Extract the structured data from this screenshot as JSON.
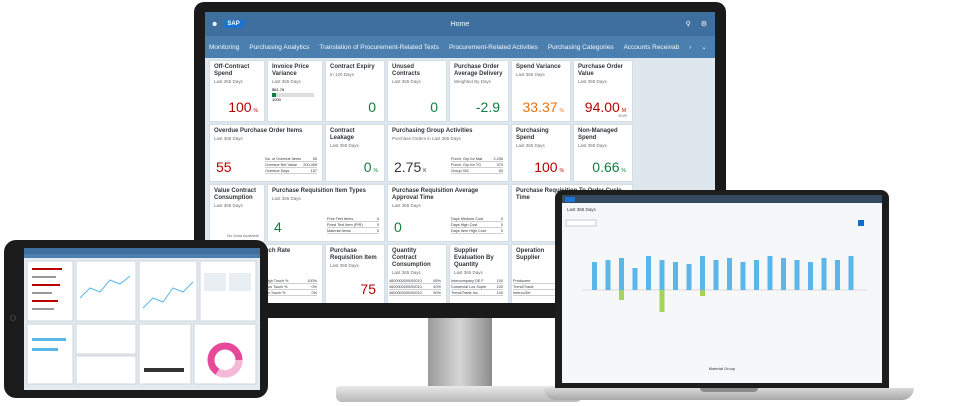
{
  "monitor": {
    "shell_title": "Home",
    "logo": "SAP",
    "tabs": [
      "Monitoring",
      "Purchasing Analytics",
      "Translation of Procurement-Related Texts",
      "Procurement-Related Activities",
      "Purchasing Categories",
      "Accounts Receivab",
      "›",
      "⌄"
    ],
    "tiles": [
      {
        "title": "Off-Contract Spend",
        "sub": "Last 365 Days",
        "kpi": "100",
        "unit": "%",
        "state": "neg"
      },
      {
        "title": "Invoice Price Variance",
        "sub": "Last 365 Days",
        "kpi": "",
        "unit": "",
        "state": "neu",
        "bar_top": "$61.76",
        "bar_bottom": "1000"
      },
      {
        "title": "Contract Expiry",
        "sub": "In 120 Days",
        "kpi": "0",
        "unit": "",
        "state": "pos"
      },
      {
        "title": "Unused Contracts",
        "sub": "Last 365 Days",
        "kpi": "0",
        "unit": "",
        "state": "pos"
      },
      {
        "title": "Purchase Order Average Delivery",
        "sub": "Weighted By Days",
        "kpi": "-2.9",
        "unit": "",
        "state": "pos"
      },
      {
        "title": "Spend Variance",
        "sub": "Last 365 Days",
        "kpi": "33.37",
        "unit": "%",
        "state": "crit"
      },
      {
        "title": "Purchase Order Value",
        "sub": "Last 365 Days",
        "kpi": "94.00",
        "unit": "M",
        "state": "neg",
        "foot": "EUR"
      },
      {
        "title": "Overdue Purchase Order Items",
        "sub": "Last 365 Days",
        "kpi": "55",
        "unit": "",
        "state": "neg",
        "rows": [
          [
            "No. of Overdue Items",
            "55"
          ],
          [
            "Overdue Net Value",
            "200,469"
          ],
          [
            "Overdue Days",
            "157"
          ]
        ]
      },
      {
        "title": "Contract Leakage",
        "sub": "Last 365 Days",
        "kpi": "0",
        "unit": "%",
        "state": "pos"
      },
      {
        "title": "Purchasing Group Activities",
        "sub": "Purchase Orders in Last 365 Days",
        "kpi": "2.75",
        "unit": "K",
        "state": "neu",
        "rows": [
          [
            "Purch. Grp for Mat",
            "2,206"
          ],
          [
            "Purch. Grp for TG",
            "379"
          ],
          [
            "Group 001",
            "63"
          ]
        ]
      },
      {
        "title": "Purchasing Spend",
        "sub": "Last 365 Days",
        "kpi": "100",
        "unit": "%",
        "state": "neg"
      },
      {
        "title": "Non-Managed Spend",
        "sub": "Last 365 Days",
        "kpi": "0.66",
        "unit": "%",
        "state": "pos"
      },
      {
        "title": "Value Contract Consumption",
        "sub": "Last 365 Days",
        "kpi": "",
        "unit": "",
        "state": "neu",
        "foot": "No Data Available"
      },
      {
        "title": "Purchase Requisition Item Types",
        "sub": "Last 365 Days",
        "kpi": "4",
        "unit": "",
        "state": "pos",
        "rows": [
          [
            "Free Text Items",
            "4"
          ],
          [
            "Fixed Text Item (PIR)",
            "0"
          ],
          [
            "Material Items",
            "0"
          ]
        ]
      },
      {
        "title": "Purchase Requisition Average Approval Time",
        "sub": "Last 365 Days",
        "kpi": "0",
        "unit": "",
        "state": "pos",
        "rows": [
          [
            "Days Medium Cost",
            "0"
          ],
          [
            "Days High Cost",
            "0"
          ],
          [
            "Days Item High Cost",
            "0"
          ]
        ]
      },
      {
        "title": "Purchase Requisition To Order Cycle Time",
        "sub": "",
        "kpi": "",
        "unit": "",
        "state": "neu"
      },
      {
        "title": "Requisition No Touch Rate",
        "sub": "",
        "kpi": "%",
        "unit": "",
        "state": "neu",
        "rows": [
          [
            "High Touch %",
            "100%"
          ],
          [
            "Low Touch %",
            "0%"
          ],
          [
            "No Touch %",
            "0%"
          ]
        ]
      },
      {
        "title": "Purchase Requisition Item",
        "sub": "Last 365 Days",
        "kpi": "75",
        "unit": "",
        "state": "neg"
      },
      {
        "title": "Quantity Contract Consumption",
        "sub": "Last 365 Days",
        "kpi": "",
        "unit": "",
        "state": "neu",
        "rows": [
          [
            "4600000000/00010",
            "65%"
          ],
          [
            "4600000000/00010",
            "40%"
          ],
          [
            "4600000000/00010",
            "50%"
          ]
        ]
      },
      {
        "title": "Supplier Evaluation By Quantity",
        "sub": "Last 365 Days",
        "kpi": "",
        "unit": "",
        "state": "neu",
        "rows": [
          [
            "Intercompany DE F",
            "100"
          ],
          [
            "Comercial Los Super",
            "100"
          ],
          [
            "Trend/Trade Inc.",
            "100"
          ]
        ]
      },
      {
        "title": "Operation Supplier",
        "sub": "",
        "kpi": "",
        "unit": "",
        "state": "neu",
        "rows": [
          [
            "Producere",
            ""
          ],
          [
            "Trend/Trade",
            ""
          ],
          [
            "Interco/De",
            ""
          ]
        ]
      }
    ]
  },
  "laptop": {
    "filter_label": "Last 365 Days",
    "chart_xlabel": "Material Group"
  },
  "colors": {
    "shell": "#3f6f9f",
    "tabs": "#4a7fb0",
    "neg": "#bb0000",
    "pos": "#107e3e",
    "crit": "#e9730c",
    "bar_blue": "#5cb7e9",
    "bar_green": "#a6d35a"
  }
}
